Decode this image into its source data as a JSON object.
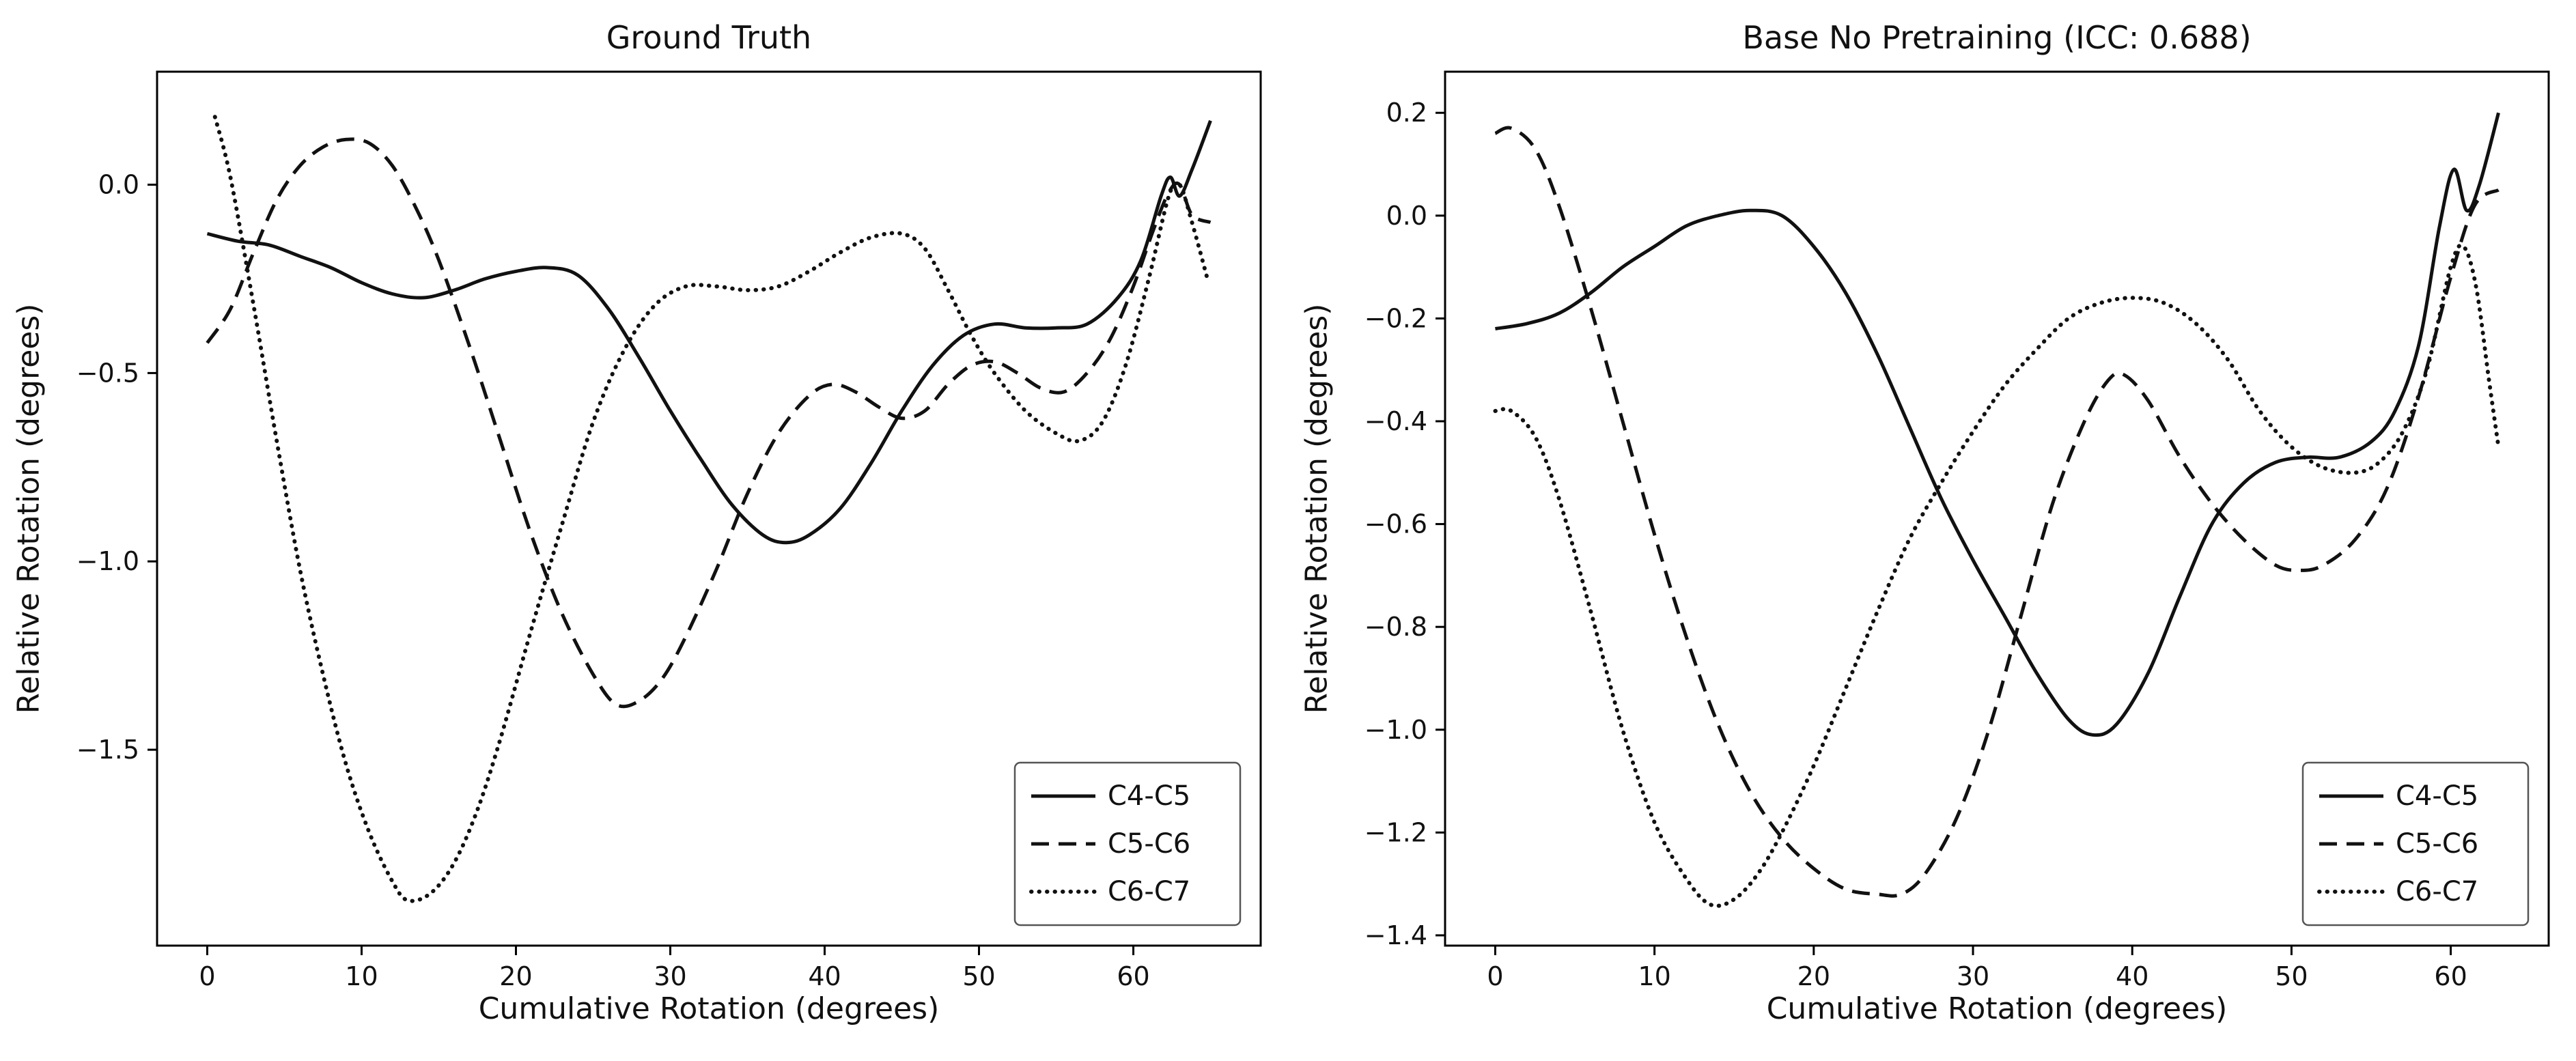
{
  "styles": {
    "line_color": "#111111",
    "text_color": "#111111",
    "background": "#ffffff"
  },
  "chart_data": [
    {
      "type": "line",
      "title": "Ground Truth",
      "xlabel": "Cumulative Rotation (degrees)",
      "ylabel": "Relative Rotation (degrees)",
      "xlim": [
        -3.25,
        68.25
      ],
      "ylim": [
        -2.02,
        0.3
      ],
      "grid": false,
      "xticks": {
        "values": [
          0,
          10,
          20,
          30,
          40,
          50,
          60
        ],
        "labels": [
          "0",
          "10",
          "20",
          "30",
          "40",
          "50",
          "60"
        ]
      },
      "yticks": {
        "values": [
          0.0,
          -0.5,
          -1.0,
          -1.5
        ],
        "labels": [
          "0.0",
          "−0.5",
          "−1.0",
          "−1.5"
        ]
      },
      "legend": {
        "position": "lower right",
        "entries": [
          "C4-C5",
          "C5-C6",
          "C6-C7"
        ]
      },
      "series": [
        {
          "name": "C4-C5",
          "style": "solid",
          "points": [
            [
              0,
              -0.13
            ],
            [
              2,
              -0.15
            ],
            [
              4,
              -0.16
            ],
            [
              6,
              -0.19
            ],
            [
              8,
              -0.22
            ],
            [
              10,
              -0.26
            ],
            [
              12,
              -0.29
            ],
            [
              14,
              -0.3
            ],
            [
              16,
              -0.28
            ],
            [
              18,
              -0.25
            ],
            [
              20,
              -0.23
            ],
            [
              22,
              -0.22
            ],
            [
              24,
              -0.24
            ],
            [
              26,
              -0.33
            ],
            [
              28,
              -0.46
            ],
            [
              30,
              -0.6
            ],
            [
              32,
              -0.73
            ],
            [
              34,
              -0.85
            ],
            [
              36,
              -0.93
            ],
            [
              37.5,
              -0.95
            ],
            [
              39,
              -0.93
            ],
            [
              41,
              -0.86
            ],
            [
              43,
              -0.74
            ],
            [
              45,
              -0.6
            ],
            [
              47,
              -0.48
            ],
            [
              49,
              -0.4
            ],
            [
              51,
              -0.37
            ],
            [
              53,
              -0.38
            ],
            [
              55,
              -0.38
            ],
            [
              57,
              -0.37
            ],
            [
              59,
              -0.3
            ],
            [
              60.5,
              -0.2
            ],
            [
              61.8,
              -0.03
            ],
            [
              62.4,
              0.02
            ],
            [
              63,
              -0.03
            ],
            [
              63.8,
              0.04
            ],
            [
              65,
              0.17
            ]
          ]
        },
        {
          "name": "C5-C6",
          "style": "dashed",
          "points": [
            [
              0,
              -0.42
            ],
            [
              1.5,
              -0.33
            ],
            [
              3,
              -0.18
            ],
            [
              4.5,
              -0.04
            ],
            [
              6,
              0.05
            ],
            [
              7.5,
              0.1
            ],
            [
              9,
              0.12
            ],
            [
              10.5,
              0.11
            ],
            [
              12,
              0.05
            ],
            [
              13.5,
              -0.06
            ],
            [
              15,
              -0.2
            ],
            [
              17,
              -0.43
            ],
            [
              19,
              -0.68
            ],
            [
              21,
              -0.93
            ],
            [
              23,
              -1.14
            ],
            [
              25,
              -1.3
            ],
            [
              26.5,
              -1.38
            ],
            [
              28,
              -1.37
            ],
            [
              29.5,
              -1.31
            ],
            [
              31,
              -1.2
            ],
            [
              33,
              -1.02
            ],
            [
              35,
              -0.82
            ],
            [
              37,
              -0.66
            ],
            [
              39,
              -0.56
            ],
            [
              40.5,
              -0.53
            ],
            [
              42,
              -0.55
            ],
            [
              43.5,
              -0.59
            ],
            [
              45,
              -0.62
            ],
            [
              46.5,
              -0.6
            ],
            [
              48,
              -0.53
            ],
            [
              49.5,
              -0.48
            ],
            [
              51,
              -0.47
            ],
            [
              52.5,
              -0.5
            ],
            [
              54,
              -0.54
            ],
            [
              55.5,
              -0.55
            ],
            [
              57,
              -0.5
            ],
            [
              58.5,
              -0.41
            ],
            [
              60,
              -0.27
            ],
            [
              61.3,
              -0.12
            ],
            [
              62.3,
              -0.02
            ],
            [
              63,
              0.0
            ],
            [
              63.8,
              -0.08
            ],
            [
              65,
              -0.1
            ]
          ]
        },
        {
          "name": "C6-C7",
          "style": "dotted",
          "points": [
            [
              0.5,
              0.18
            ],
            [
              1.5,
              0.02
            ],
            [
              3,
              -0.32
            ],
            [
              4.5,
              -0.68
            ],
            [
              6,
              -1.02
            ],
            [
              7.5,
              -1.3
            ],
            [
              9,
              -1.54
            ],
            [
              10.5,
              -1.72
            ],
            [
              12,
              -1.85
            ],
            [
              13,
              -1.9
            ],
            [
              14.5,
              -1.88
            ],
            [
              16,
              -1.8
            ],
            [
              17.5,
              -1.66
            ],
            [
              19,
              -1.47
            ],
            [
              21,
              -1.18
            ],
            [
              23,
              -0.9
            ],
            [
              25,
              -0.63
            ],
            [
              27,
              -0.44
            ],
            [
              29,
              -0.32
            ],
            [
              31,
              -0.27
            ],
            [
              33,
              -0.27
            ],
            [
              35,
              -0.28
            ],
            [
              37,
              -0.27
            ],
            [
              39,
              -0.23
            ],
            [
              41,
              -0.18
            ],
            [
              43,
              -0.14
            ],
            [
              45,
              -0.13
            ],
            [
              46.5,
              -0.17
            ],
            [
              48,
              -0.28
            ],
            [
              49.5,
              -0.4
            ],
            [
              51,
              -0.5
            ],
            [
              53,
              -0.6
            ],
            [
              55,
              -0.66
            ],
            [
              56.5,
              -0.68
            ],
            [
              58,
              -0.63
            ],
            [
              59.5,
              -0.48
            ],
            [
              61,
              -0.25
            ],
            [
              62.3,
              -0.03
            ],
            [
              63,
              0.0
            ],
            [
              63.8,
              -0.1
            ],
            [
              64.8,
              -0.25
            ]
          ]
        }
      ]
    },
    {
      "type": "line",
      "title": "Base No Pretraining (ICC: 0.688)",
      "xlabel": "Cumulative Rotation (degrees)",
      "ylabel": "Relative Rotation (degrees)",
      "xlim": [
        -3.15,
        66.15
      ],
      "ylim": [
        -1.42,
        0.28
      ],
      "grid": false,
      "xticks": {
        "values": [
          0,
          10,
          20,
          30,
          40,
          50,
          60
        ],
        "labels": [
          "0",
          "10",
          "20",
          "30",
          "40",
          "50",
          "60"
        ]
      },
      "yticks": {
        "values": [
          0.2,
          0.0,
          -0.2,
          -0.4,
          -0.6,
          -0.8,
          -1.0,
          -1.2,
          -1.4
        ],
        "labels": [
          "0.2",
          "0.0",
          "−0.2",
          "−0.4",
          "−0.6",
          "−0.8",
          "−1.0",
          "−1.2",
          "−1.4"
        ]
      },
      "legend": {
        "position": "lower right",
        "entries": [
          "C4-C5",
          "C5-C6",
          "C6-C7"
        ]
      },
      "series": [
        {
          "name": "C4-C5",
          "style": "solid",
          "points": [
            [
              0,
              -0.22
            ],
            [
              2,
              -0.21
            ],
            [
              4,
              -0.19
            ],
            [
              6,
              -0.15
            ],
            [
              8,
              -0.1
            ],
            [
              10,
              -0.06
            ],
            [
              12,
              -0.02
            ],
            [
              14,
              0.0
            ],
            [
              16,
              0.01
            ],
            [
              18,
              0.0
            ],
            [
              20,
              -0.06
            ],
            [
              22,
              -0.15
            ],
            [
              24,
              -0.27
            ],
            [
              26,
              -0.41
            ],
            [
              28,
              -0.55
            ],
            [
              30,
              -0.67
            ],
            [
              32,
              -0.78
            ],
            [
              34,
              -0.89
            ],
            [
              36,
              -0.98
            ],
            [
              37.5,
              -1.01
            ],
            [
              39,
              -0.99
            ],
            [
              41,
              -0.89
            ],
            [
              43,
              -0.74
            ],
            [
              45,
              -0.6
            ],
            [
              47,
              -0.52
            ],
            [
              49,
              -0.48
            ],
            [
              51,
              -0.47
            ],
            [
              53,
              -0.47
            ],
            [
              55,
              -0.44
            ],
            [
              56.5,
              -0.38
            ],
            [
              58,
              -0.25
            ],
            [
              59.3,
              -0.02
            ],
            [
              60.2,
              0.09
            ],
            [
              61,
              0.01
            ],
            [
              61.8,
              0.06
            ],
            [
              63,
              0.2
            ]
          ]
        },
        {
          "name": "C5-C6",
          "style": "dashed",
          "points": [
            [
              0,
              0.16
            ],
            [
              1,
              0.17
            ],
            [
              2.5,
              0.13
            ],
            [
              4,
              0.02
            ],
            [
              6,
              -0.18
            ],
            [
              8,
              -0.4
            ],
            [
              10,
              -0.62
            ],
            [
              12,
              -0.82
            ],
            [
              14,
              -0.99
            ],
            [
              16,
              -1.12
            ],
            [
              18,
              -1.21
            ],
            [
              20,
              -1.27
            ],
            [
              22,
              -1.31
            ],
            [
              24,
              -1.32
            ],
            [
              25.5,
              -1.32
            ],
            [
              27,
              -1.28
            ],
            [
              29,
              -1.17
            ],
            [
              31,
              -1.0
            ],
            [
              33,
              -0.78
            ],
            [
              35,
              -0.56
            ],
            [
              37,
              -0.4
            ],
            [
              38.5,
              -0.32
            ],
            [
              39.5,
              -0.31
            ],
            [
              41,
              -0.36
            ],
            [
              43,
              -0.47
            ],
            [
              45,
              -0.56
            ],
            [
              47,
              -0.63
            ],
            [
              49,
              -0.68
            ],
            [
              50.5,
              -0.69
            ],
            [
              52,
              -0.68
            ],
            [
              54,
              -0.63
            ],
            [
              56,
              -0.53
            ],
            [
              58,
              -0.35
            ],
            [
              60,
              -0.12
            ],
            [
              61.5,
              0.02
            ],
            [
              63,
              0.05
            ]
          ]
        },
        {
          "name": "C6-C7",
          "style": "dotted",
          "points": [
            [
              0,
              -0.38
            ],
            [
              1,
              -0.38
            ],
            [
              2.5,
              -0.43
            ],
            [
              4,
              -0.55
            ],
            [
              6,
              -0.77
            ],
            [
              8,
              -1.0
            ],
            [
              10,
              -1.18
            ],
            [
              12,
              -1.29
            ],
            [
              13.5,
              -1.34
            ],
            [
              15,
              -1.33
            ],
            [
              16.5,
              -1.28
            ],
            [
              18,
              -1.2
            ],
            [
              20,
              -1.07
            ],
            [
              22,
              -0.92
            ],
            [
              24,
              -0.77
            ],
            [
              26,
              -0.63
            ],
            [
              28,
              -0.52
            ],
            [
              30,
              -0.42
            ],
            [
              32,
              -0.33
            ],
            [
              34,
              -0.26
            ],
            [
              36,
              -0.2
            ],
            [
              38,
              -0.17
            ],
            [
              40,
              -0.16
            ],
            [
              42,
              -0.17
            ],
            [
              44,
              -0.21
            ],
            [
              46,
              -0.28
            ],
            [
              48,
              -0.38
            ],
            [
              50,
              -0.45
            ],
            [
              52,
              -0.49
            ],
            [
              54,
              -0.5
            ],
            [
              55.5,
              -0.48
            ],
            [
              57,
              -0.42
            ],
            [
              58.5,
              -0.3
            ],
            [
              60,
              -0.1
            ],
            [
              60.8,
              -0.06
            ],
            [
              61.6,
              -0.14
            ],
            [
              62.4,
              -0.32
            ],
            [
              63,
              -0.45
            ]
          ]
        }
      ]
    }
  ]
}
